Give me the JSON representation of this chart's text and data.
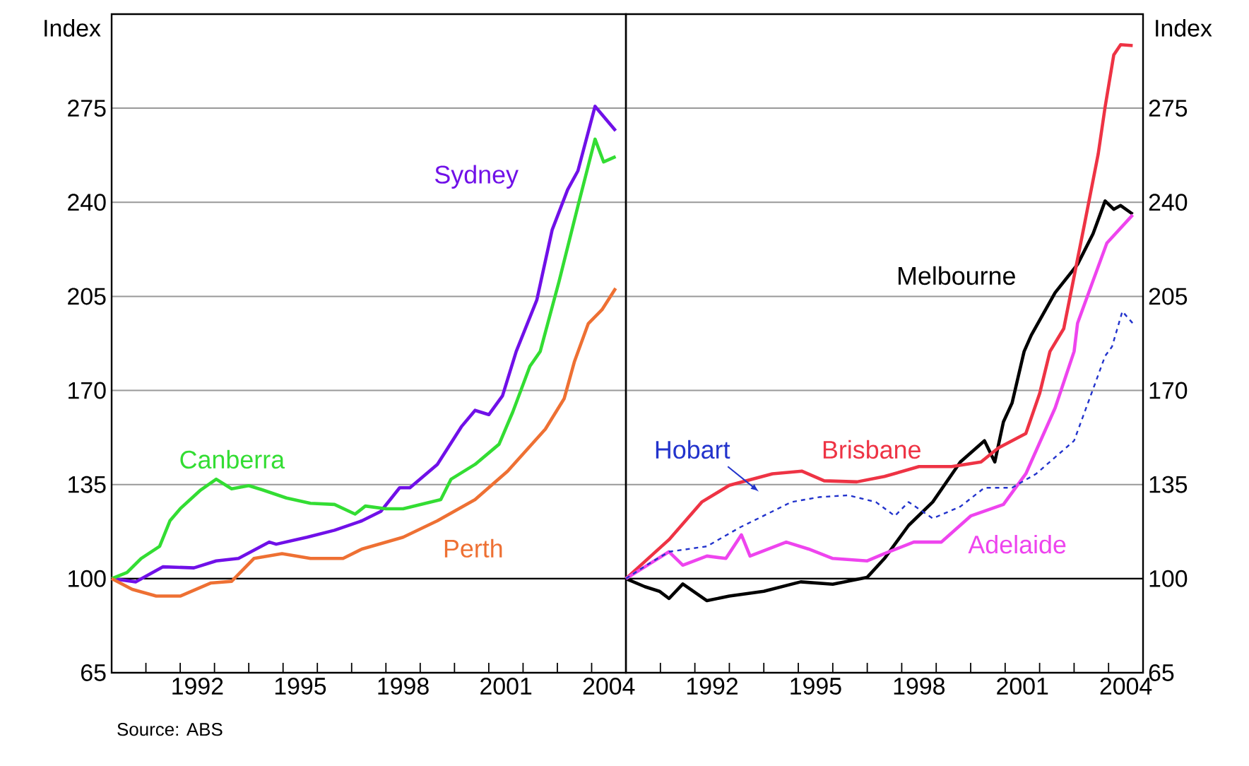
{
  "chart_data": [
    {
      "type": "line",
      "ylabel": "Index",
      "ylim": [
        65,
        310
      ],
      "yticks": [
        65,
        100,
        135,
        170,
        205,
        240,
        275
      ],
      "xlim": [
        1990,
        2005
      ],
      "xticks": [
        {
          "value": 1991,
          "label": null
        },
        {
          "value": 1992,
          "label": null
        },
        {
          "value": 1993,
          "label": null
        },
        {
          "value": 1994,
          "label": null
        },
        {
          "value": 1995,
          "label": null
        },
        {
          "value": 1996,
          "label": null
        },
        {
          "value": 1997,
          "label": null
        },
        {
          "value": 1998,
          "label": null
        },
        {
          "value": 1999,
          "label": null
        },
        {
          "value": 2000,
          "label": null
        },
        {
          "value": 2001,
          "label": null
        },
        {
          "value": 2002,
          "label": null
        },
        {
          "value": 2003,
          "label": null
        },
        {
          "value": 2004,
          "label": null
        },
        {
          "value": 1992.5,
          "label": "1992"
        },
        {
          "value": 1995.5,
          "label": "1995"
        },
        {
          "value": 1998.5,
          "label": "1998"
        },
        {
          "value": 2001.5,
          "label": "2001"
        },
        {
          "value": 2004.5,
          "label": "2004"
        }
      ],
      "grid": "y",
      "ref_lines": [
        {
          "axis": "y",
          "value": 100,
          "color": "#000000"
        }
      ],
      "annotations": [
        "Source: ABS"
      ],
      "series": [
        {
          "name": "Sydney",
          "color": "#7010e8",
          "x": [
            1990,
            1990.7,
            1991.5,
            1992.4,
            1993.05,
            1993.7,
            1994.6,
            1994.8,
            1995.7,
            1996.5,
            1997.3,
            1997.85,
            1998.4,
            1998.7,
            1999.5,
            2000.2,
            2000.6,
            2001.0,
            2001.4,
            2001.8,
            2002.4,
            2002.85,
            2003.3,
            2003.6,
            2004.1,
            2004.7
          ],
          "values": [
            100,
            98.8,
            104.4,
            104,
            106.6,
            107.5,
            113.6,
            112.8,
            115.4,
            118,
            121.5,
            125,
            133.8,
            133.8,
            142.5,
            156.5,
            162.6,
            161,
            168,
            184.5,
            203.6,
            229.8,
            244.7,
            251.7,
            275.7,
            266.6
          ]
        },
        {
          "name": "Canberra",
          "color": "#33dd33",
          "x": [
            1990,
            1990.45,
            1990.86,
            1991.4,
            1991.7,
            1992.0,
            1992.6,
            1993.05,
            1993.5,
            1994.0,
            1994.4,
            1995.1,
            1995.8,
            1996.5,
            1997.1,
            1997.4,
            1998.0,
            1998.5,
            1999.6,
            1999.9,
            2000.6,
            2001.3,
            2001.7,
            2002.2,
            2002.5,
            2003.05,
            2003.6,
            2004.1,
            2004.35,
            2004.7
          ],
          "values": [
            100,
            102.3,
            107.5,
            112,
            121.5,
            126,
            133,
            137,
            133.4,
            134.6,
            133,
            130,
            128,
            127.6,
            124,
            127,
            126,
            126,
            129.4,
            137,
            142.5,
            150,
            162,
            179,
            184.5,
            210.6,
            238.6,
            263.5,
            255,
            257
          ]
        },
        {
          "name": "Perth",
          "color": "#ee7033",
          "x": [
            1990,
            1990.6,
            1991.3,
            1992.0,
            1992.9,
            1993.5,
            1994.15,
            1994.97,
            1995.8,
            1996.75,
            1997.3,
            1998.5,
            1999.5,
            2000.6,
            2001.55,
            2002.65,
            2003.2,
            2003.5,
            2003.9,
            2004.3,
            2004.7
          ],
          "values": [
            100,
            96,
            93.5,
            93.5,
            98.4,
            99,
            107.5,
            109.3,
            107.5,
            107.5,
            111,
            115.4,
            121.5,
            129.4,
            140,
            155.6,
            167,
            180.8,
            194.8,
            200,
            208
          ]
        }
      ]
    },
    {
      "type": "line",
      "y2label": "Index",
      "y2lim": [
        65,
        310
      ],
      "y2ticks": [
        65,
        100,
        135,
        170,
        205,
        240,
        275
      ],
      "xlim": [
        1990,
        2005
      ],
      "xticks": [
        {
          "value": 1991,
          "label": null
        },
        {
          "value": 1992,
          "label": null
        },
        {
          "value": 1993,
          "label": null
        },
        {
          "value": 1994,
          "label": null
        },
        {
          "value": 1995,
          "label": null
        },
        {
          "value": 1996,
          "label": null
        },
        {
          "value": 1997,
          "label": null
        },
        {
          "value": 1998,
          "label": null
        },
        {
          "value": 1999,
          "label": null
        },
        {
          "value": 2000,
          "label": null
        },
        {
          "value": 2001,
          "label": null
        },
        {
          "value": 2002,
          "label": null
        },
        {
          "value": 2003,
          "label": null
        },
        {
          "value": 2004,
          "label": null
        },
        {
          "value": 1992.5,
          "label": "1992"
        },
        {
          "value": 1995.5,
          "label": "1995"
        },
        {
          "value": 1998.5,
          "label": "1998"
        },
        {
          "value": 2001.5,
          "label": "2001"
        },
        {
          "value": 2004.5,
          "label": "2004"
        }
      ],
      "grid": "y",
      "ref_lines": [
        {
          "axis": "y2",
          "value": 100,
          "color": "#000000"
        }
      ],
      "series": [
        {
          "name": "Melbourne",
          "color": "#000000",
          "axis": "y2",
          "x": [
            1990,
            1990.55,
            1990.97,
            1991.25,
            1991.65,
            1992.35,
            1993.0,
            1994.0,
            1995.07,
            1996.0,
            1997.0,
            1997.5,
            1998.2,
            1998.9,
            1999.7,
            2000.4,
            2000.7,
            2000.95,
            2001.2,
            2001.55,
            2001.76,
            2002.45,
            2003.1,
            2003.55,
            2003.9,
            2004.15,
            2004.35,
            2004.7
          ],
          "values": [
            100,
            97,
            95.3,
            92.6,
            98,
            91.8,
            93.5,
            95.3,
            98.8,
            97.9,
            100.5,
            107.5,
            119.8,
            128.5,
            143.4,
            151.3,
            143.4,
            158.3,
            165.3,
            184.5,
            190.6,
            206.4,
            216.9,
            228.3,
            240.5,
            237.4,
            238.8,
            235.6
          ]
        },
        {
          "name": "Brisbane",
          "color": "#ee3344",
          "axis": "y2",
          "x": [
            1990,
            1991.25,
            1992.2,
            1993.0,
            1994.25,
            1995.1,
            1995.75,
            1996.7,
            1997.5,
            1998.5,
            1999.45,
            2000.3,
            2000.8,
            2001.6,
            2002.0,
            2002.3,
            2002.7,
            2003.3,
            2003.7,
            2003.9,
            2004.15,
            2004.35,
            2004.7
          ],
          "values": [
            100,
            114.5,
            128.5,
            134.7,
            139,
            140,
            136.4,
            136,
            138,
            141.7,
            141.7,
            143.4,
            148.6,
            154,
            168.8,
            184.5,
            193,
            231.8,
            258,
            275.5,
            294.8,
            298.6,
            298.3
          ]
        },
        {
          "name": "Adelaide",
          "color": "#ee44ee",
          "axis": "y2",
          "x": [
            1990,
            1991.25,
            1991.65,
            1992.35,
            1992.9,
            1993.35,
            1993.6,
            1994.65,
            1995.3,
            1996.0,
            1997.0,
            1997.5,
            1998.35,
            1999.15,
            2000.0,
            2000.95,
            2001.6,
            2002.45,
            2003.0,
            2003.1,
            2003.55,
            2003.95,
            2004.7
          ],
          "values": [
            100,
            110,
            105,
            108.4,
            107.5,
            116.3,
            108.4,
            113.6,
            111,
            107.5,
            106.6,
            109.3,
            113.6,
            113.6,
            123.3,
            127.6,
            139,
            163.5,
            184.5,
            195,
            210.8,
            224.8,
            235.3
          ]
        },
        {
          "name": "Hobart",
          "color": "#2233cc",
          "axis": "y2",
          "line_style": "dashed",
          "x": [
            1990,
            1990.7,
            1991.25,
            1992.35,
            1993.3,
            1994.25,
            1994.8,
            1995.6,
            1996.45,
            1997.25,
            1997.8,
            1998.2,
            1998.9,
            1999.7,
            2000.4,
            2001.2,
            2001.9,
            2003.0,
            2003.55,
            2003.9,
            2004.1,
            2004.4,
            2004.7
          ],
          "values": [
            100,
            105.8,
            110,
            112,
            119,
            125,
            128.5,
            130.3,
            131,
            128.5,
            123.3,
            128.5,
            122.4,
            126.8,
            133.8,
            133.8,
            139,
            151.3,
            170.5,
            182.8,
            186.3,
            199.4,
            195
          ]
        }
      ]
    }
  ]
}
